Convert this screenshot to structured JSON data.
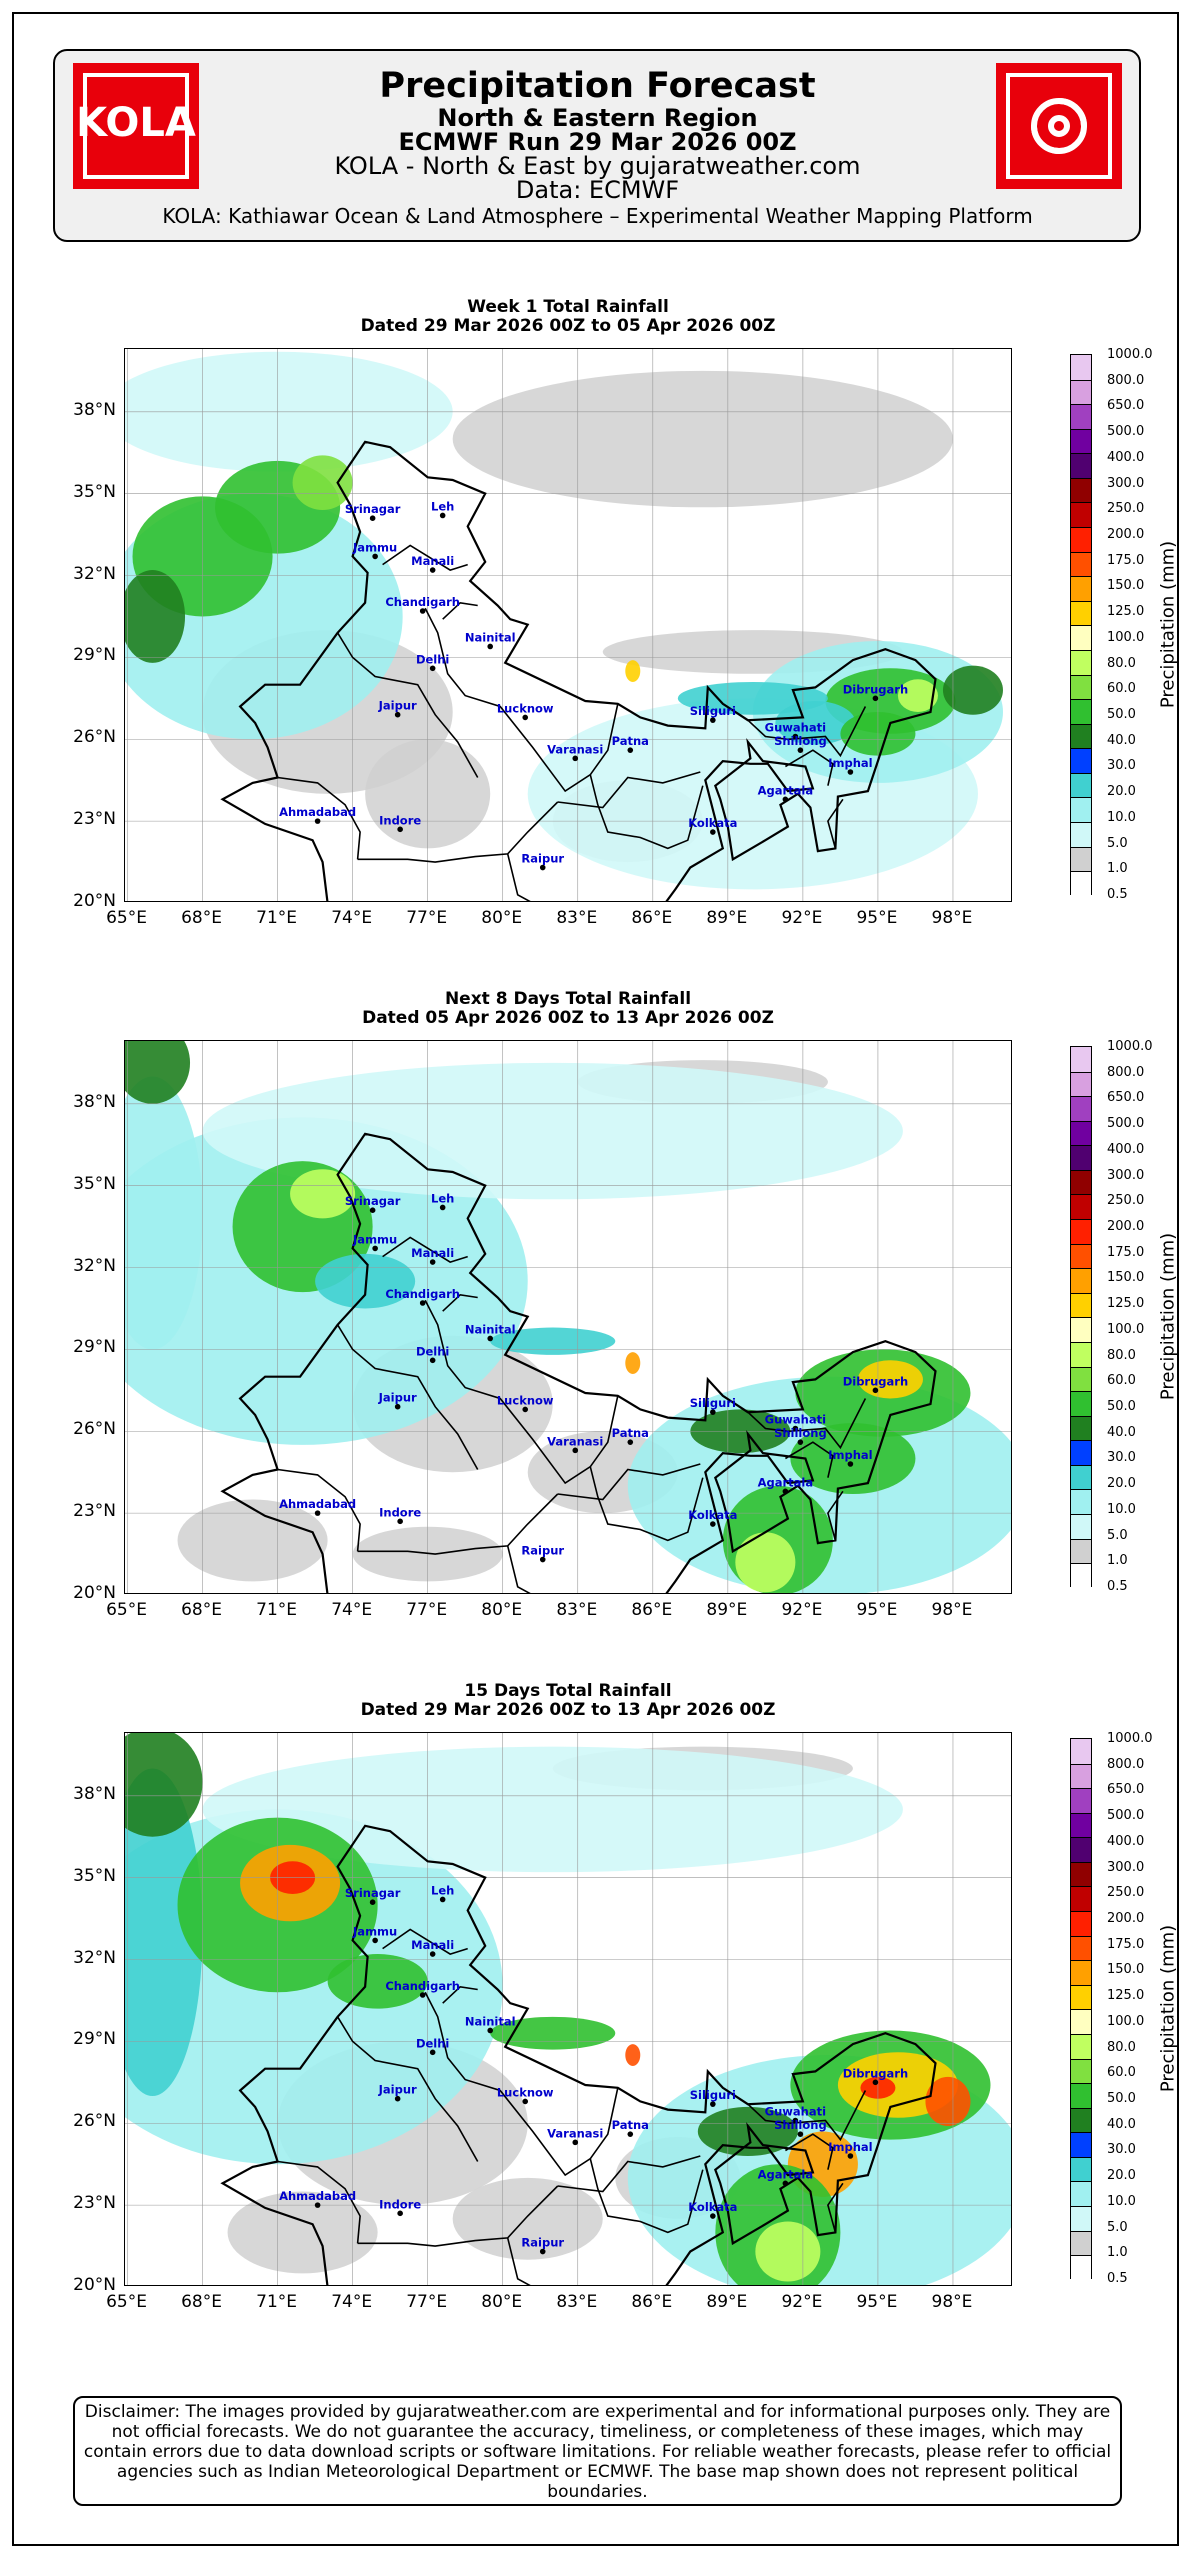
{
  "header": {
    "title": "Precipitation Forecast",
    "region": "North & Eastern Region",
    "run": "ECMWF Run 29 Mar 2026 00Z",
    "source_line": "KOLA - North & East by gujaratweather.com",
    "data_line": "Data: ECMWF",
    "tagline": "KOLA: Kathiawar Ocean & Land Atmosphere – Experimental Weather Mapping Platform",
    "logo_text": "KOLA"
  },
  "panels": [
    {
      "title": "Week 1 Total Rainfall",
      "dates": "Dated 29 Mar 2026 00Z to 05 Apr 2026 00Z"
    },
    {
      "title": "Next 8 Days Total Rainfall",
      "dates": "Dated 05 Apr 2026 00Z to 13 Apr 2026 00Z"
    },
    {
      "title": "15 Days Total Rainfall",
      "dates": "Dated 29 Mar 2026 00Z to 13 Apr 2026 00Z"
    }
  ],
  "axes": {
    "lat_ticks": [
      "38°N",
      "35°N",
      "32°N",
      "29°N",
      "26°N",
      "23°N",
      "20°N"
    ],
    "lon_ticks": [
      "65°E",
      "68°E",
      "71°E",
      "74°E",
      "77°E",
      "80°E",
      "83°E",
      "86°E",
      "89°E",
      "92°E",
      "95°E",
      "98°E"
    ]
  },
  "colorbar": {
    "title": "Precipitation (mm)",
    "levels": [
      "1000.0",
      "800.0",
      "650.0",
      "500.0",
      "400.0",
      "300.0",
      "250.0",
      "200.0",
      "175.0",
      "150.0",
      "125.0",
      "100.0",
      "80.0",
      "60.0",
      "50.0",
      "40.0",
      "30.0",
      "20.0",
      "10.0",
      "5.0",
      "1.0",
      "0.5"
    ],
    "colors": [
      "#e8c8f0",
      "#d8a0e0",
      "#a040c0",
      "#7000a0",
      "#500070",
      "#900000",
      "#c00000",
      "#ff2000",
      "#ff5000",
      "#ffa000",
      "#ffd000",
      "#ffffc0",
      "#c0ff60",
      "#80e040",
      "#30c030",
      "#208020",
      "#0040ff",
      "#40d0d0",
      "#a0f0f0",
      "#d0f8f8",
      "#d0d0d0",
      "#ffffff"
    ]
  },
  "cities": [
    "Srinagar",
    "Leh",
    "Jammu",
    "Manali",
    "Chandigarh",
    "Nainital",
    "Delhi",
    "Jaipur",
    "Lucknow",
    "Varanasi",
    "Patna",
    "Siliguri",
    "Dibrugarh",
    "Guwahati",
    "Shillong",
    "Imphal",
    "Agartala",
    "Kolkata",
    "Ahmadabad",
    "Indore",
    "Raipur"
  ],
  "disclaimer": "Disclaimer: The images provided by gujaratweather.com are experimental and for informational purposes only. They are not official forecasts. We do not guarantee the accuracy, timeliness, or completeness of these images, which may contain errors due to data download scripts or software limitations. For reliable weather forecasts, please refer to official agencies such as Indian Meteorological Department or ECMWF. The base map shown does not represent political boundaries."
}
